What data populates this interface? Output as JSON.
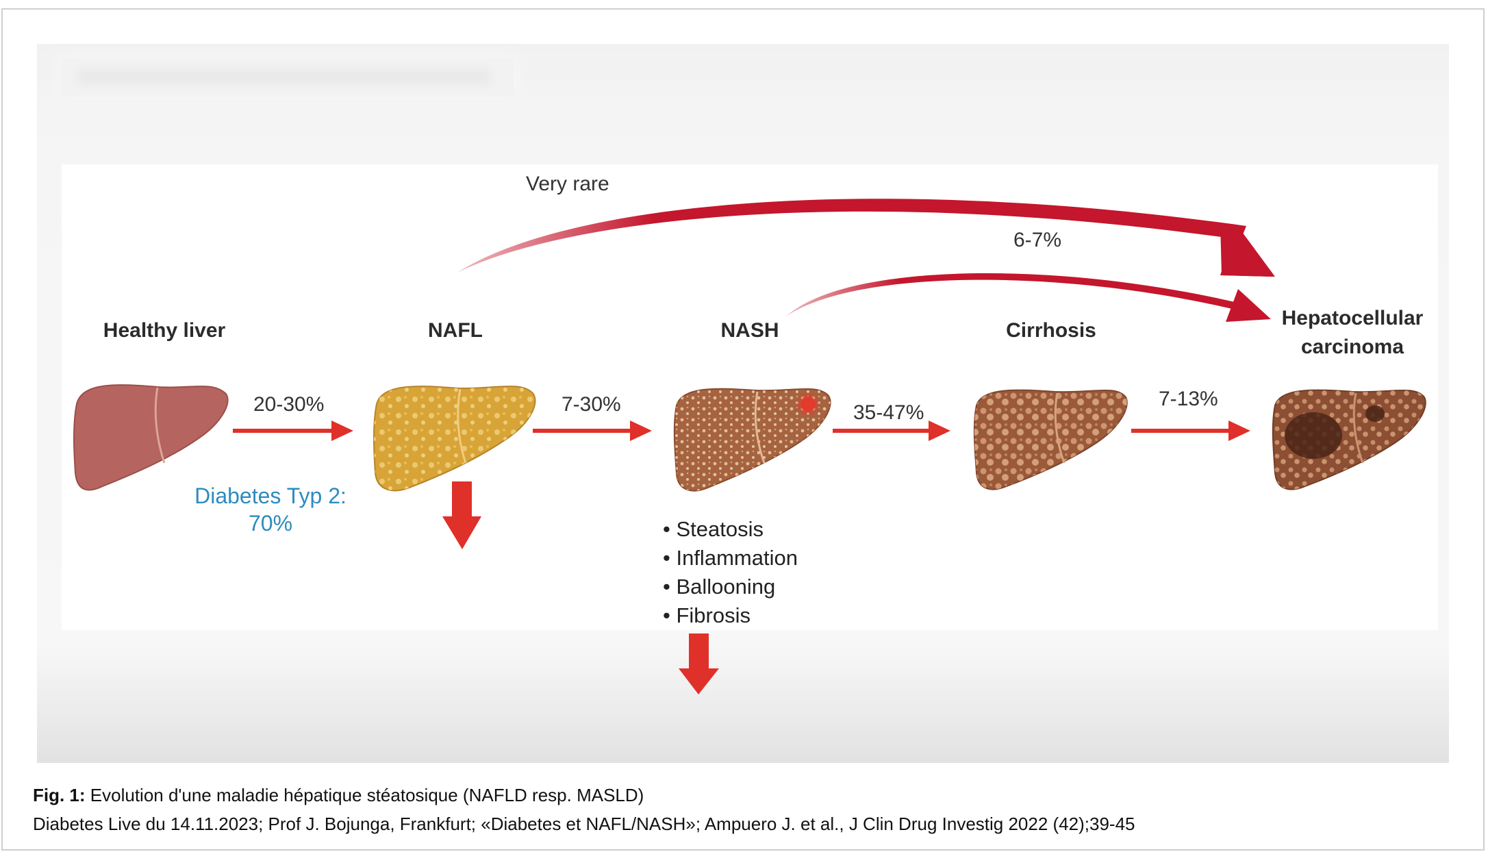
{
  "stages": {
    "healthy": "Healthy liver",
    "nafl": "NAFL",
    "nash": "NASH",
    "cirrhosis": "Cirrhosis",
    "hcc_line1": "Hepatocellular",
    "hcc_line2": "carcinoma"
  },
  "transitions": {
    "healthy_to_nafl": "20-30%",
    "nafl_to_nash": "7-30%",
    "nash_to_cirrhosis": "35-47%",
    "cirrhosis_to_hcc": "7-13%",
    "nafl_to_hcc": "Very rare",
    "nash_to_hcc": "6-7%"
  },
  "diabetes": {
    "line1": "Diabetes Typ 2:",
    "line2": "70%"
  },
  "nash_features": [
    "Steatosis",
    "Inflammation",
    "Ballooning",
    "Fibrosis"
  ],
  "caption": {
    "fig_label": "Fig. 1:",
    "fig_title": " Evolution d'une maladie hépatique stéatosique (NAFLD resp. MASLD)",
    "source": "Diabetes Live du 14.11.2023; Prof J. Bojunga, Frankfurt; «Diabetes et NAFL/NASH»; Ampuero J. et al., J Clin Drug Investig 2022 (42);39-45"
  },
  "colors": {
    "arrow_red": "#e0302a",
    "curve_red": "#c4162c",
    "diabetes_blue": "#2e8bc0",
    "healthy_liver": "#b5645f",
    "nafl_liver": "#d9a437",
    "nash_liver": "#a6633f",
    "cirrhosis_liver": "#9a5a3a",
    "hcc_liver": "#8c4f33"
  },
  "icons": [
    "healthy-liver-icon",
    "nafl-liver-icon",
    "nash-liver-icon",
    "cirrhosis-liver-icon",
    "hcc-liver-icon"
  ]
}
